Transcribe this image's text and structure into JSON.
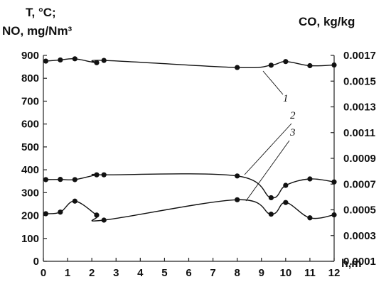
{
  "chart_data": {
    "type": "line",
    "ylabel_left_line1": "T, °C;",
    "ylabel_left_line2": "NO, mg/Nm³",
    "ylabel_right": "CO, kg/kg",
    "xlabel": "h,m",
    "xlim": [
      0,
      12
    ],
    "ylim_left": [
      0,
      900
    ],
    "ylim_right": [
      0.0001,
      0.0017
    ],
    "x_ticks": [
      "0",
      "1",
      "2",
      "3",
      "4",
      "5",
      "6",
      "7",
      "8",
      "9",
      "10",
      "11",
      "12"
    ],
    "y_ticks_left": [
      "0",
      "100",
      "200",
      "300",
      "400",
      "500",
      "600",
      "700",
      "800",
      "900"
    ],
    "y_ticks_right": [
      "0.0001",
      "0.0003",
      "0.0005",
      "0.0007",
      "0.0009",
      "0.0011",
      "0.0013",
      "0.0015",
      "0.0017"
    ],
    "series": [
      {
        "name": "1",
        "axis": "left",
        "x": [
          0.1,
          0.7,
          1.3,
          2.2,
          2.5,
          8.0,
          9.4,
          10.0,
          11.0,
          12.0
        ],
        "y": [
          875,
          880,
          885,
          868,
          878,
          847,
          857,
          873,
          855,
          858
        ]
      },
      {
        "name": "2",
        "axis": "left",
        "x": [
          0.1,
          0.7,
          1.3,
          2.2,
          2.5,
          8.0,
          9.4,
          10.0,
          11.0,
          12.0
        ],
        "y": [
          357,
          358,
          357,
          378,
          378,
          373,
          278,
          332,
          360,
          347
        ]
      },
      {
        "name": "3",
        "axis": "left",
        "x": [
          0.1,
          0.7,
          1.3,
          2.2,
          2.5,
          8.0,
          9.4,
          10.0,
          11.0,
          12.0
        ],
        "y": [
          208,
          215,
          263,
          202,
          180,
          269,
          206,
          257,
          190,
          203
        ]
      }
    ],
    "annotations": [
      "1",
      "2",
      "3"
    ]
  }
}
